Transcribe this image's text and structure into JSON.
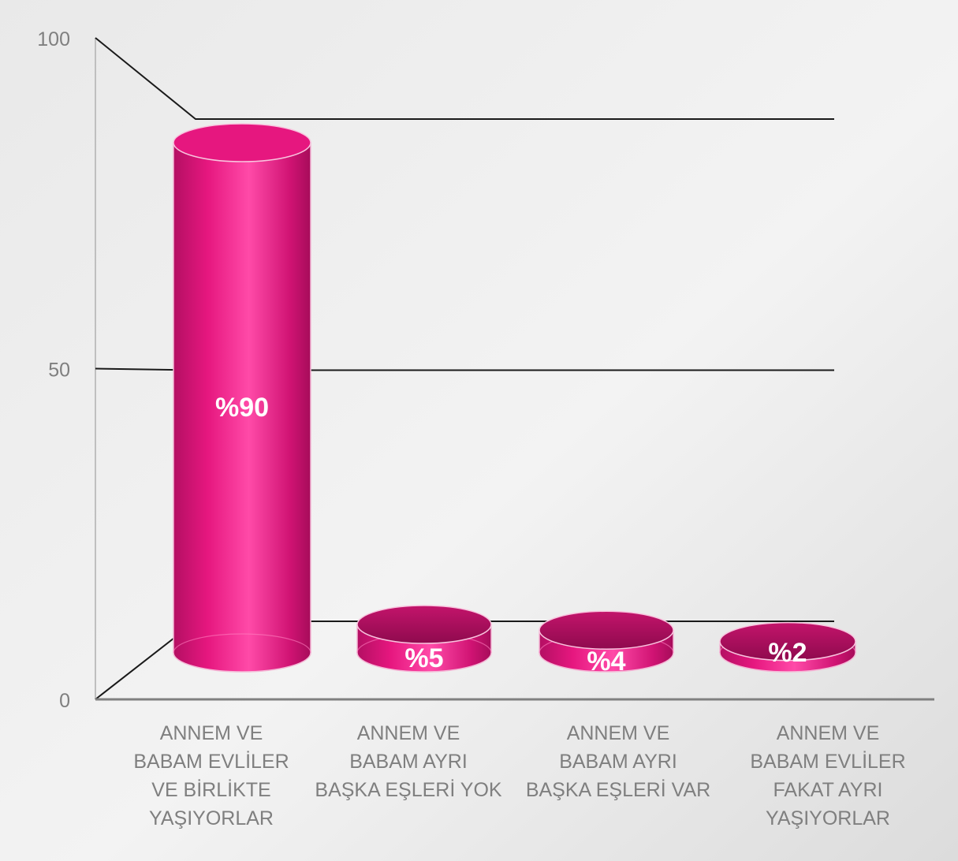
{
  "chart_data": {
    "type": "bar",
    "categories": [
      "ANNEM VE\nBABAM EVLİLER\nVE BİRLİKTE\nYAŞIYORLAR",
      "ANNEM VE\nBABAM AYRI\nBAŞKA EŞLERİ YOK",
      "ANNEM VE\nBABAM AYRI\nBAŞKA EŞLERİ VAR",
      "ANNEM VE\nBABAM EVLİLER\nFAKAT AYRI\nYAŞIYORLAR"
    ],
    "values": [
      90,
      5,
      4,
      2
    ],
    "data_labels": [
      "%90",
      "%5",
      "%4",
      "%2"
    ],
    "yticks": [
      "0",
      "50",
      "100"
    ],
    "ylim": [
      0,
      100
    ],
    "grid": true,
    "legend": "none",
    "colors": {
      "bar": "#e6177f",
      "bar_light": "#ff5cb0",
      "bar_dark": "#9e0a55",
      "top": "#b3125f",
      "background": "#e4e4e4",
      "axis_text": "#7f7f7f"
    }
  }
}
